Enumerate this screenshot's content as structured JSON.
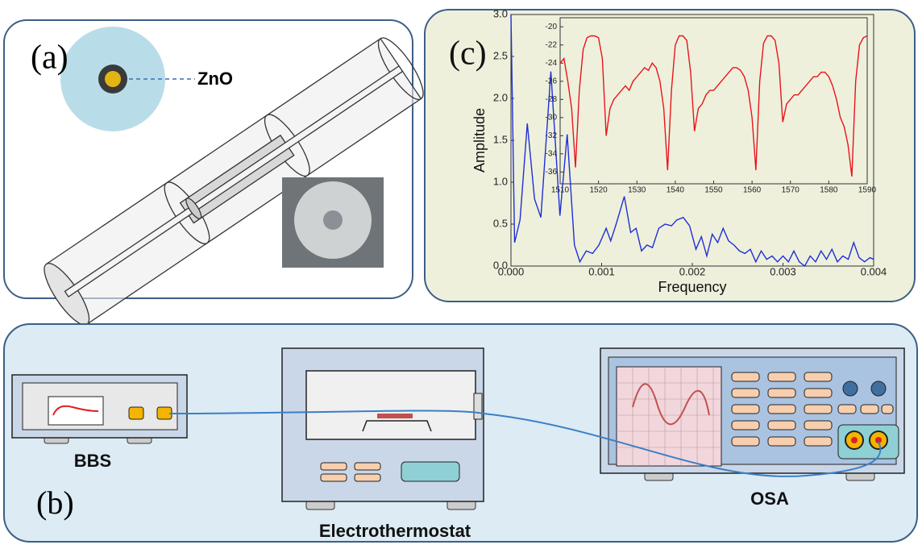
{
  "panel_a": {
    "label": "(a)",
    "material": "ZnO"
  },
  "panel_b": {
    "label": "(b)",
    "devices": [
      "BBS",
      "Electrothermostat",
      "OSA"
    ]
  },
  "chart_data": [
    {
      "type": "line",
      "annotation": "(c)",
      "xlabel": "Frequency",
      "ylabel": "Amplitude",
      "color": "#1f2fd6",
      "xlim": [
        0,
        0.004
      ],
      "ylim": [
        0,
        3.0
      ],
      "xticks": [
        {
          "value": 0,
          "label": "0.000"
        },
        0.001,
        0.002,
        0.003,
        0.004
      ],
      "yticks": [
        {
          "value": 0,
          "label": "0.0"
        },
        0.5,
        {
          "value": 1,
          "label": "1.0"
        },
        1.5,
        {
          "value": 2,
          "label": "2.0"
        },
        2.5,
        {
          "value": 3,
          "label": "3.0"
        }
      ],
      "x": [
        0,
        4e-05,
        0.0001,
        0.00018,
        0.00026,
        0.00033,
        0.00044,
        0.00054,
        0.00062,
        0.0007,
        0.00076,
        0.00083,
        0.0009,
        0.00097,
        0.00105,
        0.0011,
        0.00116,
        0.00125,
        0.00132,
        0.00138,
        0.00144,
        0.0015,
        0.00156,
        0.00163,
        0.0017,
        0.00177,
        0.00183,
        0.0019,
        0.00197,
        0.00204,
        0.0021,
        0.00216,
        0.00222,
        0.00228,
        0.00234,
        0.0024,
        0.00246,
        0.00252,
        0.00258,
        0.00264,
        0.0027,
        0.00276,
        0.00282,
        0.00288,
        0.00294,
        0.003,
        0.00306,
        0.00312,
        0.00318,
        0.00324,
        0.0033,
        0.00336,
        0.00342,
        0.00348,
        0.00354,
        0.0036,
        0.00366,
        0.00372,
        0.00378,
        0.00384,
        0.0039,
        0.00396,
        0.004
      ],
      "values": [
        3.0,
        0.28,
        0.55,
        1.7,
        0.8,
        0.58,
        2.32,
        0.6,
        1.57,
        0.25,
        0.05,
        0.18,
        0.15,
        0.25,
        0.45,
        0.3,
        0.5,
        0.83,
        0.4,
        0.45,
        0.18,
        0.25,
        0.22,
        0.45,
        0.5,
        0.48,
        0.55,
        0.58,
        0.48,
        0.2,
        0.35,
        0.12,
        0.38,
        0.28,
        0.45,
        0.3,
        0.25,
        0.18,
        0.15,
        0.2,
        0.05,
        0.18,
        0.08,
        0.12,
        0.05,
        0.12,
        0.05,
        0.18,
        0.05,
        0.0,
        0.12,
        0.05,
        0.18,
        0.08,
        0.2,
        0.05,
        0.12,
        0.08,
        0.28,
        0.1,
        0.05,
        0.1,
        0.08
      ]
    },
    {
      "type": "line",
      "color": "#e8141c",
      "xlim": [
        1510,
        1590
      ],
      "ylim": [
        -37.3,
        -19
      ],
      "xticks": [
        1510,
        1520,
        1530,
        1540,
        1550,
        1560,
        1570,
        1580,
        1590
      ],
      "yticks": [
        -20,
        -22,
        -24,
        -26,
        -28,
        -30,
        -32,
        -34,
        -36
      ],
      "x": [
        1510,
        1511,
        1512,
        1513,
        1514,
        1515,
        1516,
        1517,
        1518,
        1519,
        1520,
        1521,
        1522,
        1523,
        1524,
        1525,
        1526,
        1527,
        1528,
        1529,
        1530,
        1531,
        1532,
        1533,
        1534,
        1535,
        1536,
        1537,
        1538,
        1539,
        1540,
        1541,
        1542,
        1543,
        1544,
        1545,
        1546,
        1547,
        1548,
        1549,
        1550,
        1551,
        1552,
        1553,
        1554,
        1555,
        1556,
        1557,
        1558,
        1559,
        1560,
        1561,
        1562,
        1563,
        1564,
        1565,
        1566,
        1567,
        1568,
        1569,
        1570,
        1571,
        1572,
        1573,
        1574,
        1575,
        1576,
        1577,
        1578,
        1579,
        1580,
        1581,
        1582,
        1583,
        1584,
        1585,
        1586,
        1587,
        1588,
        1589,
        1590
      ],
      "values": [
        -24,
        -23.5,
        -26,
        -29,
        -35.5,
        -27,
        -22.5,
        -21.2,
        -21,
        -21,
        -21.2,
        -23.5,
        -32,
        -29,
        -28,
        -27.5,
        -27,
        -26.5,
        -27,
        -26,
        -25.5,
        -25,
        -24.5,
        -24.8,
        -24,
        -24.5,
        -26,
        -29,
        -35.8,
        -27,
        -22,
        -21,
        -21,
        -21.5,
        -25,
        -31.5,
        -29,
        -28.5,
        -27.5,
        -27,
        -27,
        -26.5,
        -26,
        -25.5,
        -25,
        -24.5,
        -24.5,
        -24.8,
        -25.5,
        -27,
        -30,
        -35.8,
        -26,
        -21.8,
        -21,
        -21,
        -21.5,
        -24,
        -30.5,
        -28.5,
        -28,
        -27.5,
        -27.5,
        -27,
        -26.5,
        -26,
        -25.5,
        -25.5,
        -25,
        -25,
        -25.5,
        -26.5,
        -28,
        -30,
        -31,
        -33,
        -36.5,
        -26,
        -22,
        -21.2,
        -21
      ]
    }
  ]
}
